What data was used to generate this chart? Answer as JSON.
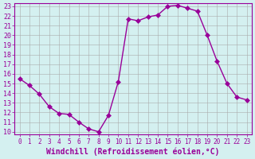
{
  "x": [
    0,
    1,
    2,
    3,
    4,
    5,
    6,
    7,
    8,
    9,
    10,
    11,
    12,
    13,
    14,
    15,
    16,
    17,
    18,
    19,
    20,
    21,
    22,
    23
  ],
  "y": [
    15.5,
    14.8,
    13.9,
    12.6,
    11.9,
    11.8,
    11.0,
    10.3,
    10.0,
    11.7,
    15.2,
    21.7,
    21.5,
    21.9,
    22.1,
    23.0,
    23.1,
    22.8,
    22.5,
    20.0,
    17.3,
    15.0,
    13.6,
    13.3
  ],
  "line_color": "#990099",
  "marker": "D",
  "marker_size": 3,
  "bg_color": "#d4f0f0",
  "grid_color": "#aaaaaa",
  "xlabel": "Windchill (Refroidissement éolien,°C)",
  "xlabel_fontsize": 7,
  "tick_fontsize": 6,
  "ylim": [
    10,
    23
  ],
  "xlim": [
    0,
    23
  ],
  "yticks": [
    10,
    11,
    12,
    13,
    14,
    15,
    16,
    17,
    18,
    19,
    20,
    21,
    22,
    23
  ],
  "xticks": [
    0,
    1,
    2,
    3,
    4,
    5,
    6,
    7,
    8,
    9,
    10,
    11,
    12,
    13,
    14,
    15,
    16,
    17,
    18,
    19,
    20,
    21,
    22,
    23
  ]
}
